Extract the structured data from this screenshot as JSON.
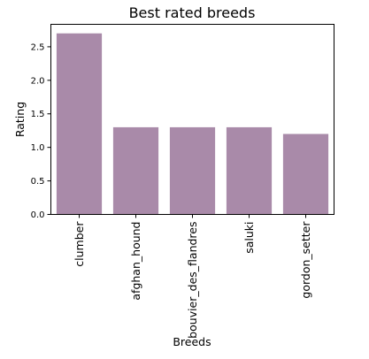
{
  "chart_data": {
    "type": "bar",
    "title": "Best rated breeds",
    "xlabel": "Breeds",
    "ylabel": "Rating",
    "categories": [
      "clumber",
      "afghan_hound",
      "bouvier_des_flandres",
      "saluki",
      "gordon_setter"
    ],
    "values": [
      2.7,
      1.3,
      1.3,
      1.3,
      1.2
    ],
    "ylim": [
      0,
      2.835
    ],
    "yticks": [
      "0.0",
      "0.5",
      "1.0",
      "1.5",
      "2.0",
      "2.5"
    ],
    "grid": false,
    "bar_color": "#a98aa9"
  }
}
